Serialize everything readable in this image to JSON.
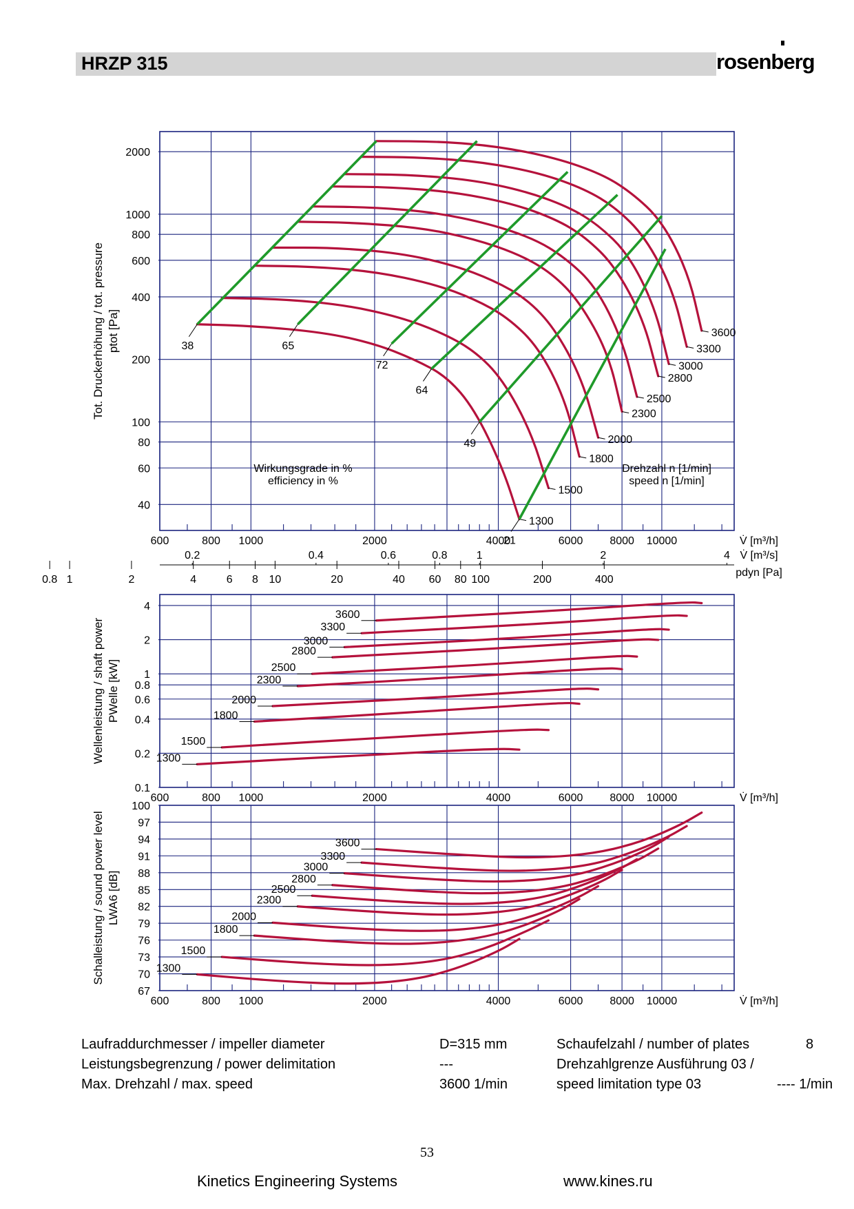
{
  "header": {
    "title": "HRZP 315",
    "brand": "rosenberg"
  },
  "colors": {
    "curve": "#b5123c",
    "efficiency": "#1f9a2a",
    "grid": "#1a237e",
    "header_bg": "#d4d4d4"
  },
  "chart_data": [
    {
      "type": "line",
      "panel": "pressure",
      "xlabel": "V̇ [m³/h]",
      "ylabel_de": "Tot. Druckerhöhung / tot. pressure",
      "ylabel_sym": "ptot [Pa]",
      "xlim": [
        600,
        15000
      ],
      "ylim": [
        30,
        2500
      ],
      "x_scale": "log",
      "y_scale": "log",
      "x_ticks": [
        "600",
        "800",
        "1000",
        "2000",
        "4000",
        "6000",
        "8000",
        "10000"
      ],
      "y_ticks": [
        "2000",
        "1000",
        "800",
        "600",
        "400",
        "200",
        "100",
        "80",
        "60",
        "40"
      ],
      "secondary_axes": {
        "flow_m3s": {
          "label": "V̇ [m³/s]",
          "ticks": [
            "0.2",
            "0.4",
            "0.6",
            "0.8",
            "1",
            "2",
            "4"
          ]
        },
        "pdyn": {
          "label": "pdyn [Pa]",
          "ticks": [
            "0.8",
            "1",
            "2",
            "4",
            "6",
            "8",
            "10",
            "20",
            "40",
            "60",
            "80",
            "100",
            "200",
            "400"
          ]
        }
      },
      "annotation_left": [
        "Wirkungsgrade in %",
        "efficiency in %"
      ],
      "annotation_right": [
        "Drehzahl n [1/min]",
        "speed n [1/min]"
      ],
      "series": [
        {
          "name": "1300",
          "x": [
            740,
            1000,
            1500,
            2000,
            2500,
            3000,
            3500,
            4100,
            4500
          ],
          "y": [
            295,
            290,
            270,
            238,
            200,
            165,
            115,
            60,
            34
          ]
        },
        {
          "name": "1500",
          "x": [
            850,
            1200,
            1700,
            2300,
            2900,
            3500,
            4100,
            4800,
            5300
          ],
          "y": [
            395,
            390,
            365,
            320,
            270,
            220,
            160,
            90,
            48
          ]
        },
        {
          "name": "1800",
          "x": [
            1020,
            1400,
            2000,
            2800,
            3500,
            4200,
            5000,
            5800,
            6300
          ],
          "y": [
            565,
            560,
            530,
            460,
            390,
            320,
            230,
            130,
            68
          ]
        },
        {
          "name": "2000",
          "x": [
            1130,
            1600,
            2300,
            3100,
            3900,
            4700,
            5500,
            6400,
            7000
          ],
          "y": [
            690,
            690,
            650,
            570,
            480,
            390,
            280,
            160,
            84
          ]
        },
        {
          "name": "2300",
          "x": [
            1300,
            1800,
            2600,
            3500,
            4500,
            5400,
            6300,
            7400,
            8000
          ],
          "y": [
            920,
            910,
            860,
            760,
            640,
            520,
            380,
            215,
            112
          ]
        },
        {
          "name": "2500",
          "x": [
            1410,
            2000,
            2800,
            3800,
            4900,
            5800,
            6900,
            8000,
            8700
          ],
          "y": [
            1090,
            1080,
            1020,
            900,
            760,
            620,
            450,
            250,
            132
          ]
        },
        {
          "name": "2800",
          "x": [
            1580,
            2200,
            3100,
            4300,
            5500,
            6500,
            7700,
            9000,
            9800
          ],
          "y": [
            1360,
            1350,
            1280,
            1130,
            950,
            780,
            560,
            315,
            166
          ]
        },
        {
          "name": "3000",
          "x": [
            1690,
            2400,
            3400,
            4600,
            5900,
            7000,
            8300,
            9600,
            10400
          ],
          "y": [
            1560,
            1550,
            1470,
            1300,
            1090,
            890,
            640,
            360,
            190
          ]
        },
        {
          "name": "3300",
          "x": [
            1860,
            2600,
            3700,
            5100,
            6500,
            7700,
            9100,
            10600,
            11500
          ],
          "y": [
            1890,
            1880,
            1780,
            1570,
            1320,
            1080,
            780,
            440,
            230
          ]
        },
        {
          "name": "3600",
          "x": [
            2020,
            2900,
            4000,
            5500,
            7100,
            8400,
            10000,
            11600,
            12500
          ],
          "y": [
            2250,
            2240,
            2120,
            1870,
            1570,
            1280,
            930,
            520,
            275
          ]
        }
      ],
      "efficiency_lines": [
        {
          "name": "38",
          "x": [
            740,
            2020
          ],
          "y": [
            295,
            2250
          ]
        },
        {
          "name": "65",
          "x": [
            1300,
            3550
          ],
          "y": [
            295,
            2250
          ]
        },
        {
          "name": "72",
          "x": [
            2200,
            5900
          ],
          "y": [
            238,
            1600
          ]
        },
        {
          "name": "64",
          "x": [
            2750,
            7800
          ],
          "y": [
            180,
            1240
          ]
        },
        {
          "name": "49",
          "x": [
            3600,
            10000
          ],
          "y": [
            100,
            980
          ]
        },
        {
          "name": "21",
          "x": [
            4500,
            10200
          ],
          "y": [
            34,
            680
          ]
        }
      ]
    },
    {
      "type": "line",
      "panel": "shaft_power",
      "xlabel": "V̇ [m³/h]",
      "ylabel_de": "Wellenleistung / shaft power",
      "ylabel_sym": "PWelle [kW]",
      "xlim": [
        600,
        15000
      ],
      "ylim": [
        0.1,
        5
      ],
      "x_scale": "log",
      "y_scale": "log",
      "x_ticks": [
        "600",
        "800",
        "1000",
        "2000",
        "4000",
        "6000",
        "8000",
        "10000"
      ],
      "y_ticks": [
        "4",
        "2",
        "1",
        "0.8",
        "0.6",
        "0.4",
        "0.2",
        "0.1"
      ],
      "series": [
        {
          "name": "1300",
          "x": [
            740,
            2000,
            4000,
            4500
          ],
          "y": [
            0.16,
            0.195,
            0.22,
            0.215
          ]
        },
        {
          "name": "1500",
          "x": [
            850,
            2300,
            4800,
            5300
          ],
          "y": [
            0.225,
            0.28,
            0.325,
            0.32
          ]
        },
        {
          "name": "1800",
          "x": [
            1020,
            2800,
            5800,
            6300
          ],
          "y": [
            0.38,
            0.47,
            0.56,
            0.545
          ]
        },
        {
          "name": "2000",
          "x": [
            1130,
            3100,
            6400,
            7000
          ],
          "y": [
            0.52,
            0.63,
            0.75,
            0.73
          ]
        },
        {
          "name": "2300",
          "x": [
            1300,
            3500,
            7400,
            8000
          ],
          "y": [
            0.78,
            0.95,
            1.13,
            1.1
          ]
        },
        {
          "name": "2500",
          "x": [
            1410,
            3800,
            8000,
            8700
          ],
          "y": [
            1.0,
            1.21,
            1.45,
            1.42
          ]
        },
        {
          "name": "2800",
          "x": [
            1580,
            4300,
            9000,
            9800
          ],
          "y": [
            1.4,
            1.7,
            2.03,
            1.99
          ]
        },
        {
          "name": "3000",
          "x": [
            1690,
            4600,
            9600,
            10400
          ],
          "y": [
            1.72,
            2.08,
            2.5,
            2.45
          ]
        },
        {
          "name": "3300",
          "x": [
            1860,
            5100,
            10600,
            11500
          ],
          "y": [
            2.28,
            2.76,
            3.3,
            3.24
          ]
        },
        {
          "name": "3600",
          "x": [
            2020,
            5500,
            11600,
            12500
          ],
          "y": [
            2.95,
            3.6,
            4.3,
            4.2
          ]
        }
      ]
    },
    {
      "type": "line",
      "panel": "sound_power",
      "xlabel": "V̇ [m³/h]",
      "ylabel_de": "Schalleistung / sound power level",
      "ylabel_sym": "LWA6 [dB]",
      "xlim": [
        600,
        15000
      ],
      "ylim": [
        67,
        100
      ],
      "x_scale": "log",
      "y_scale": "linear",
      "x_ticks": [
        "600",
        "800",
        "1000",
        "2000",
        "4000",
        "6000",
        "8000",
        "10000"
      ],
      "y_ticks": [
        "100",
        "97",
        "94",
        "91",
        "88",
        "85",
        "82",
        "79",
        "76",
        "73",
        "70",
        "67"
      ],
      "series": [
        {
          "name": "1300",
          "x": [
            740,
            1200,
            1800,
            2500,
            3200,
            4000,
            4500
          ],
          "y": [
            69.9,
            68.6,
            68.1,
            68.9,
            71.0,
            74.0,
            76.2
          ]
        },
        {
          "name": "1500",
          "x": [
            850,
            1400,
            2100,
            2900,
            3700,
            4600,
            5300
          ],
          "y": [
            73.0,
            71.8,
            71.4,
            72.3,
            74.4,
            77.3,
            79.5
          ]
        },
        {
          "name": "1800",
          "x": [
            1020,
            1700,
            2500,
            3500,
            4500,
            5600,
            6300
          ],
          "y": [
            76.8,
            75.6,
            75.2,
            76.1,
            78.2,
            81.1,
            83.3
          ]
        },
        {
          "name": "2000",
          "x": [
            1130,
            1900,
            2800,
            3900,
            5000,
            6200,
            7000
          ],
          "y": [
            79.1,
            77.9,
            77.5,
            78.4,
            80.5,
            83.4,
            85.6
          ]
        },
        {
          "name": "2300",
          "x": [
            1300,
            2200,
            3200,
            4500,
            5700,
            7100,
            8000
          ],
          "y": [
            82.0,
            80.8,
            80.4,
            81.3,
            83.4,
            86.3,
            88.5
          ]
        },
        {
          "name": "2500",
          "x": [
            1410,
            2400,
            3500,
            4900,
            6200,
            7700,
            8700
          ],
          "y": [
            83.9,
            82.7,
            82.3,
            83.2,
            85.3,
            88.2,
            90.4
          ]
        },
        {
          "name": "2800",
          "x": [
            1580,
            2700,
            3900,
            5500,
            7000,
            8700,
            9800
          ],
          "y": [
            85.8,
            84.6,
            84.2,
            85.1,
            87.2,
            90.1,
            92.3
          ]
        },
        {
          "name": "3000",
          "x": [
            1690,
            2900,
            4200,
            5900,
            7500,
            9300,
            10400
          ],
          "y": [
            87.9,
            86.7,
            86.3,
            87.2,
            89.3,
            92.2,
            94.4
          ]
        },
        {
          "name": "3300",
          "x": [
            1860,
            3200,
            4600,
            6500,
            8200,
            10200,
            11500
          ],
          "y": [
            89.8,
            88.6,
            88.2,
            89.1,
            91.2,
            94.1,
            96.3
          ]
        },
        {
          "name": "3600",
          "x": [
            2020,
            3500,
            5100,
            7000,
            9000,
            11100,
            12500
          ],
          "y": [
            92.2,
            91.0,
            90.6,
            91.5,
            93.6,
            96.5,
            98.7
          ]
        }
      ]
    }
  ],
  "specs": [
    {
      "label": "Laufraddurchmesser / impeller diameter",
      "value": "D=315 mm"
    },
    {
      "label": "Leistungsbegrenzung / power delimitation",
      "value": "---"
    },
    {
      "label": "Max. Drehzahl / max. speed",
      "value": "3600 1/min"
    },
    {
      "label": "Schaufelzahl / number of plates",
      "value": "8"
    },
    {
      "label": "Drehzahlgrenze Ausführung 03 /",
      "value": ""
    },
    {
      "label": "speed limitation type 03",
      "value": "---- 1/min"
    }
  ],
  "footer": {
    "page_number": "53",
    "company": "Kinetics Engineering Systems",
    "website": "www.kines.ru"
  }
}
